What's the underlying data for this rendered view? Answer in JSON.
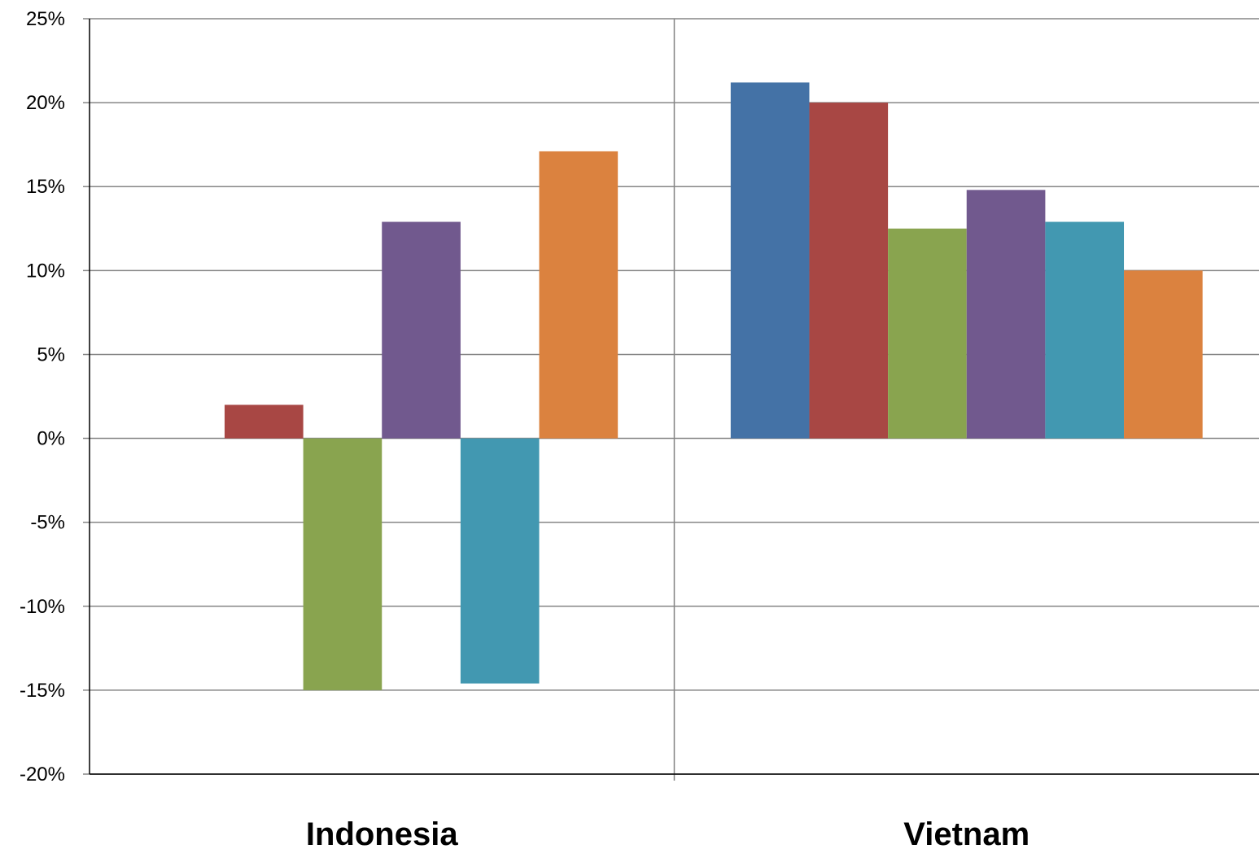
{
  "chart_data": {
    "type": "bar",
    "categories": [
      "Indonesia",
      "Vietnam"
    ],
    "series": [
      {
        "color": "#4472a6",
        "values": [
          null,
          21.2
        ]
      },
      {
        "color": "#a84744",
        "values": [
          2.0,
          20.0
        ]
      },
      {
        "color": "#89a44f",
        "values": [
          -15.0,
          12.5
        ]
      },
      {
        "color": "#71598e",
        "values": [
          12.9,
          14.8
        ]
      },
      {
        "color": "#4298b1",
        "values": [
          -14.6,
          12.9
        ]
      },
      {
        "color": "#db823f",
        "values": [
          17.1,
          10.0
        ]
      }
    ],
    "title": "",
    "xlabel": "",
    "ylabel": "",
    "ylim": [
      -20,
      25
    ],
    "yticks": [
      25,
      20,
      15,
      10,
      5,
      0,
      -5,
      -10,
      -15,
      -20
    ],
    "ytick_labels": [
      "25%",
      "20%",
      "15%",
      "10%",
      "5%",
      "0%",
      "-5%",
      "-10%",
      "-15%",
      "-20%"
    ],
    "grid": true,
    "category_separators": true,
    "legend": "none"
  }
}
